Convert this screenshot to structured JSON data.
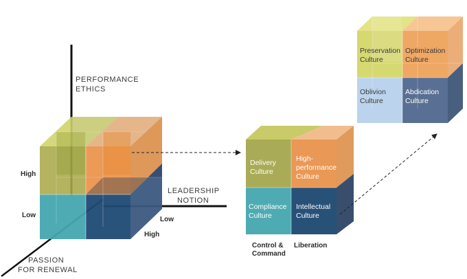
{
  "axes": {
    "vertical": [
      "PERFORMANCE",
      "ETHICS"
    ],
    "horizontal": [
      "LEADERSHIP",
      "NOTION"
    ],
    "diagonal": [
      "PASSION",
      "FOR RENEWAL"
    ]
  },
  "left_cube": {
    "high_label": "High",
    "low_label": "Low",
    "front_low": "Low",
    "front_high": "High"
  },
  "middle_cube": {
    "cells": {
      "top_left": [
        "Delivery",
        "Culture"
      ],
      "top_right": [
        "High-",
        "performance",
        "Culture"
      ],
      "bottom_left": [
        "Compliance",
        "Culture"
      ],
      "bottom_right": [
        "Intellectual",
        "Culture"
      ]
    },
    "bottom_labels": {
      "left": [
        "Control &",
        "Command"
      ],
      "right": "Liberation"
    }
  },
  "right_cube": {
    "cells": {
      "top_left": [
        "Preservation",
        "Culture"
      ],
      "top_right": [
        "Optimization",
        "Culture"
      ],
      "bottom_left": [
        "Oblivion",
        "Culture"
      ],
      "bottom_right": [
        "Abdication",
        "Culture"
      ]
    }
  },
  "colors": {
    "yellow_green": "#a8a84a",
    "orange": "#e8924a",
    "teal": "#48a8b0",
    "navy": "#1f4a72",
    "light_yellow": "#d9da6a",
    "light_orange": "#eea15a",
    "light_blue": "#b8d0ec",
    "slate": "#50688f"
  }
}
